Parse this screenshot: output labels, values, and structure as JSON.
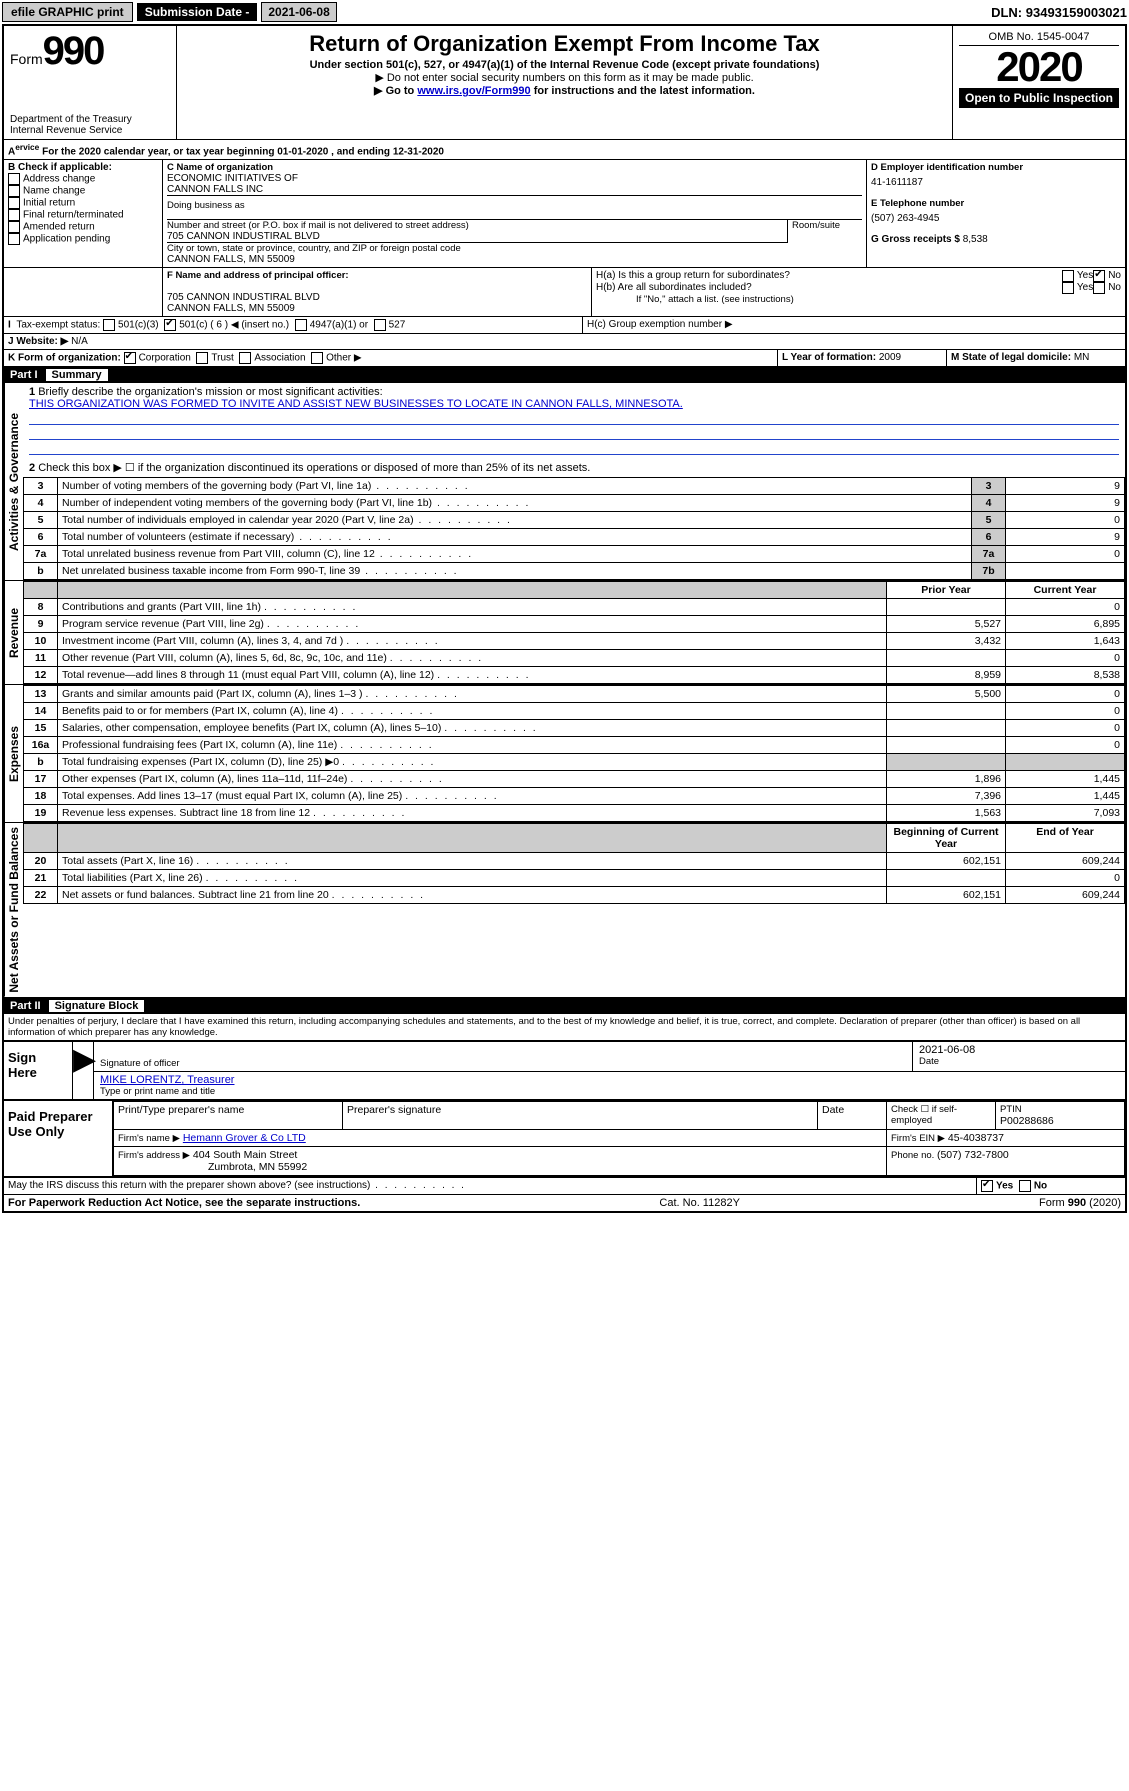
{
  "topbar": {
    "efile": "efile GRAPHIC print",
    "submission_lbl": "Submission Date - ",
    "submission_date": "2021-06-08",
    "dln_lbl": "DLN: ",
    "dln": "93493159003021"
  },
  "header": {
    "form_word": "Form",
    "form_num": "990",
    "dept1": "Department of the Treasury",
    "dept2": "Internal Revenue Service",
    "title": "Return of Organization Exempt From Income Tax",
    "subtitle": "Under section 501(c), 527, or 4947(a)(1) of the Internal Revenue Code (except private foundations)",
    "note1": "▶ Do not enter social security numbers on this form as it may be made public.",
    "note2a": "▶ Go to ",
    "note2link": "www.irs.gov/Form990",
    "note2b": " for instructions and the latest information.",
    "omb": "OMB No. 1545-0047",
    "year": "2020",
    "open": "Open to Public Inspection"
  },
  "period": {
    "text": "For the 2020 calendar year, or tax year beginning ",
    "begin": "01-01-2020",
    "mid": " , and ending ",
    "end": "12-31-2020"
  },
  "boxB": {
    "label": "B Check if applicable:",
    "items": [
      "Address change",
      "Name change",
      "Initial return",
      "Final return/terminated",
      "Amended return",
      "Application pending"
    ]
  },
  "boxC": {
    "label": "C Name of organization",
    "name1": "ECONOMIC INITIATIVES OF",
    "name2": "CANNON FALLS INC",
    "dba_lbl": "Doing business as",
    "addr_lbl": "Number and street (or P.O. box if mail is not delivered to street address)",
    "room_lbl": "Room/suite",
    "addr": "705 CANNON INDUSTIRAL BLVD",
    "city_lbl": "City or town, state or province, country, and ZIP or foreign postal code",
    "city": "CANNON FALLS, MN  55009"
  },
  "boxD": {
    "label": "D Employer identification number",
    "val": "41-1611187"
  },
  "boxE": {
    "label": "E Telephone number",
    "val": "(507) 263-4945"
  },
  "boxG": {
    "label": "G Gross receipts $ ",
    "val": "8,538"
  },
  "boxF": {
    "label": "F Name and address of principal officer:",
    "line1": "705 CANNON INDUSTIRAL BLVD",
    "line2": "CANNON FALLS, MN  55009"
  },
  "boxH": {
    "a": "H(a)  Is this a group return for subordinates?",
    "b": "H(b)  Are all subordinates included?",
    "bnote": "If \"No,\" attach a list. (see instructions)",
    "c": "H(c)  Group exemption number ▶",
    "yes": "Yes",
    "no": "No"
  },
  "boxI": {
    "label": "Tax-exempt status:",
    "opts": [
      "501(c)(3)",
      "501(c) ( 6 ) ◀ (insert no.)",
      "4947(a)(1) or",
      "527"
    ]
  },
  "boxJ": {
    "label": "J  Website: ▶",
    "val": "N/A"
  },
  "boxK": {
    "label": "K Form of organization:",
    "opts": [
      "Corporation",
      "Trust",
      "Association",
      "Other ▶"
    ]
  },
  "boxL": {
    "label": "L Year of formation: ",
    "val": "2009"
  },
  "boxM": {
    "label": "M State of legal domicile: ",
    "val": "MN"
  },
  "part1": {
    "label": "Part I",
    "title": "Summary"
  },
  "summary": {
    "q1": "Briefly describe the organization's mission or most significant activities:",
    "mission": "THIS ORGANIZATION WAS FORMED TO INVITE AND ASSIST NEW BUSINESSES TO LOCATE IN CANNON FALLS, MINNESOTA.",
    "q2": "Check this box ▶ ☐  if the organization discontinued its operations or disposed of more than 25% of its net assets.",
    "rows_gov": [
      {
        "n": "3",
        "t": "Number of voting members of the governing body (Part VI, line 1a)",
        "box": "3",
        "v": "9"
      },
      {
        "n": "4",
        "t": "Number of independent voting members of the governing body (Part VI, line 1b)",
        "box": "4",
        "v": "9"
      },
      {
        "n": "5",
        "t": "Total number of individuals employed in calendar year 2020 (Part V, line 2a)",
        "box": "5",
        "v": "0"
      },
      {
        "n": "6",
        "t": "Total number of volunteers (estimate if necessary)",
        "box": "6",
        "v": "9"
      },
      {
        "n": "7a",
        "t": "Total unrelated business revenue from Part VIII, column (C), line 12",
        "box": "7a",
        "v": "0"
      },
      {
        "n": "b",
        "t": "Net unrelated business taxable income from Form 990-T, line 39",
        "box": "7b",
        "v": ""
      }
    ],
    "col_prior": "Prior Year",
    "col_curr": "Current Year",
    "rows_rev": [
      {
        "n": "8",
        "t": "Contributions and grants (Part VIII, line 1h)",
        "p": "",
        "c": "0"
      },
      {
        "n": "9",
        "t": "Program service revenue (Part VIII, line 2g)",
        "p": "5,527",
        "c": "6,895"
      },
      {
        "n": "10",
        "t": "Investment income (Part VIII, column (A), lines 3, 4, and 7d )",
        "p": "3,432",
        "c": "1,643"
      },
      {
        "n": "11",
        "t": "Other revenue (Part VIII, column (A), lines 5, 6d, 8c, 9c, 10c, and 11e)",
        "p": "",
        "c": "0"
      },
      {
        "n": "12",
        "t": "Total revenue—add lines 8 through 11 (must equal Part VIII, column (A), line 12)",
        "p": "8,959",
        "c": "8,538"
      }
    ],
    "rows_exp": [
      {
        "n": "13",
        "t": "Grants and similar amounts paid (Part IX, column (A), lines 1–3 )",
        "p": "5,500",
        "c": "0"
      },
      {
        "n": "14",
        "t": "Benefits paid to or for members (Part IX, column (A), line 4)",
        "p": "",
        "c": "0"
      },
      {
        "n": "15",
        "t": "Salaries, other compensation, employee benefits (Part IX, column (A), lines 5–10)",
        "p": "",
        "c": "0"
      },
      {
        "n": "16a",
        "t": "Professional fundraising fees (Part IX, column (A), line 11e)",
        "p": "",
        "c": "0"
      },
      {
        "n": "b",
        "t": "Total fundraising expenses (Part IX, column (D), line 25) ▶0",
        "p": "shade",
        "c": "shade"
      },
      {
        "n": "17",
        "t": "Other expenses (Part IX, column (A), lines 11a–11d, 11f–24e)",
        "p": "1,896",
        "c": "1,445"
      },
      {
        "n": "18",
        "t": "Total expenses. Add lines 13–17 (must equal Part IX, column (A), line 25)",
        "p": "7,396",
        "c": "1,445"
      },
      {
        "n": "19",
        "t": "Revenue less expenses. Subtract line 18 from line 12",
        "p": "1,563",
        "c": "7,093"
      }
    ],
    "col_begin": "Beginning of Current Year",
    "col_end": "End of Year",
    "rows_net": [
      {
        "n": "20",
        "t": "Total assets (Part X, line 16)",
        "p": "602,151",
        "c": "609,244"
      },
      {
        "n": "21",
        "t": "Total liabilities (Part X, line 26)",
        "p": "",
        "c": "0"
      },
      {
        "n": "22",
        "t": "Net assets or fund balances. Subtract line 21 from line 20",
        "p": "602,151",
        "c": "609,244"
      }
    ],
    "vlabels": {
      "gov": "Activities & Governance",
      "rev": "Revenue",
      "exp": "Expenses",
      "net": "Net Assets or Fund Balances"
    }
  },
  "part2": {
    "label": "Part II",
    "title": "Signature Block"
  },
  "sigtext": "Under penalties of perjury, I declare that I have examined this return, including accompanying schedules and statements, and to the best of my knowledge and belief, it is true, correct, and complete. Declaration of preparer (other than officer) is based on all information of which preparer has any knowledge.",
  "sign": {
    "here": "Sign Here",
    "sigoff": "Signature of officer",
    "date_lbl": "Date",
    "date": "2021-06-08",
    "name": "MIKE LORENTZ, Treasurer",
    "name_lbl": "Type or print name and title"
  },
  "paid": {
    "label": "Paid Preparer Use Only",
    "h1": "Print/Type preparer's name",
    "h2": "Preparer's signature",
    "h3": "Date",
    "h4": "Check ☐ if self-employed",
    "h5": "PTIN",
    "ptin": "P00288686",
    "firm_lbl": "Firm's name   ▶",
    "firm": "Hemann Grover & Co LTD",
    "ein_lbl": "Firm's EIN ▶",
    "ein": "45-4038737",
    "addr_lbl": "Firm's address ▶",
    "addr1": "404 South Main Street",
    "addr2": "Zumbrota, MN  55992",
    "phone_lbl": "Phone no. ",
    "phone": "(507) 732-7800"
  },
  "discuss": "May the IRS discuss this return with the preparer shown above? (see instructions)",
  "footer": {
    "l": "For Paperwork Reduction Act Notice, see the separate instructions.",
    "c": "Cat. No. 11282Y",
    "r": "Form 990 (2020)"
  }
}
